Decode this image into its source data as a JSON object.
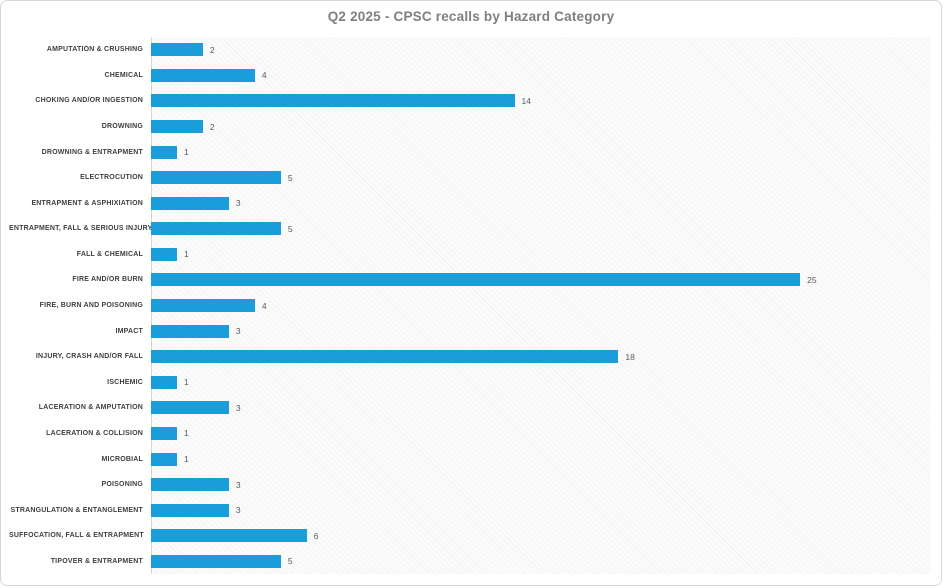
{
  "colors": {
    "bar": "#1b9dd9",
    "title_text": "#7f7f7f",
    "category_text": "#3f3f3f",
    "value_text": "#595959",
    "axis_line": "#d6d6d6",
    "frame_border": "#d8d8d8",
    "plot_background": "#fbfbfb"
  },
  "chart_data": {
    "type": "bar",
    "orientation": "horizontal",
    "title": "Q2 2025 - CPSC recalls by Hazard Category",
    "categories": [
      "AMPUTATION & CRUSHING",
      "CHEMICAL",
      "CHOKING AND/OR INGESTION",
      "DROWNING",
      "DROWNING & ENTRAPMENT",
      "ELECTROCUTION",
      "ENTRAPMENT & ASPHIXIATION",
      "ENTRAPMENT, FALL & SERIOUS INJURY",
      "FALL & CHEMICAL",
      "FIRE AND/OR BURN",
      "FIRE, BURN AND POISONING",
      "IMPACT",
      "INJURY, CRASH AND/OR FALL",
      "ISCHEMIC",
      "LACERATION & AMPUTATION",
      "LACERATION & COLLISION",
      "MICROBIAL",
      "POISONING",
      "STRANGULATION & ENTANGLEMENT",
      "SUFFOCATION, FALL & ENTRAPMENT",
      "TIPOVER & ENTRAPMENT"
    ],
    "values": [
      2,
      4,
      14,
      2,
      1,
      5,
      3,
      5,
      1,
      25,
      4,
      3,
      18,
      1,
      3,
      1,
      1,
      3,
      3,
      6,
      5
    ],
    "xlabel": "",
    "ylabel": "",
    "xlim": [
      0,
      30
    ],
    "grid": false,
    "legend": false,
    "value_labels": true,
    "bar_color": "#1b9dd9",
    "plot_area_fill": "diagonal-hatch"
  }
}
